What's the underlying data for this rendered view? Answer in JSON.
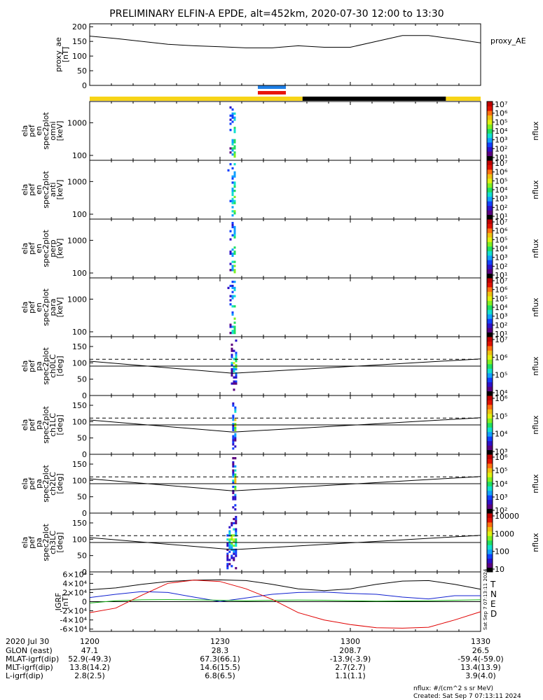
{
  "title": "PRELIMINARY ELFIN-A EPDE, alt=452km, 2020-07-30 12:00 to 13:30",
  "colors": {
    "bar_yellow": "#f7d417",
    "bar_black": "#000000",
    "marker_blue": "#1e7fe6",
    "marker_red": "#e8160c",
    "T": "#000000",
    "N": "#1020d0",
    "E": "#10b010",
    "D": "#e00000"
  },
  "colormap": [
    "#000000",
    "#5a0080",
    "#2e10c8",
    "#1040ff",
    "#10a0ff",
    "#10e0d0",
    "#20e060",
    "#80f020",
    "#e0f010",
    "#f0c010",
    "#ff7010",
    "#e01000",
    "#c00000"
  ],
  "time_axis": {
    "date_label": "2020 Jul 30",
    "ticks": [
      "1200",
      "1230",
      "1300",
      "1330"
    ],
    "rows": [
      {
        "label": "GLON (east)",
        "values": [
          "47.1",
          "28.3",
          "208.7",
          "26.5"
        ]
      },
      {
        "label": "MLAT-igrf(dip)",
        "values": [
          "52.9(-49.3)",
          "67.3(66.1)",
          "-13.9(-3.9)",
          "-59.4(-59.0)"
        ]
      },
      {
        "label": "MLT-igrf(dip)",
        "values": [
          "13.8(14.2)",
          "14.6(15.5)",
          "2.7(2.7)",
          "13.4(13.9)"
        ]
      },
      {
        "label": "L-igrf(dip)",
        "values": [
          "2.8(2.5)",
          "6.8(6.5)",
          "1.1(1.1)",
          "3.9(4.0)"
        ]
      }
    ]
  },
  "footer": {
    "units": "nflux: #/(cm^2 s sr MeV)",
    "created": "Created: Sat Sep  7 07:13:11 2024",
    "side_stamp": "Sat Sep  7 07:13:11 2024"
  },
  "chart_data": [
    {
      "type": "line",
      "name": "proxy_ae",
      "ylabel_lines": [
        "proxy_ae",
        "[nT]"
      ],
      "right_label": "proxy_AE",
      "ylim": [
        0,
        210
      ],
      "yticks": [
        "0",
        "50",
        "100",
        "150",
        "200"
      ],
      "x_minutes": [
        0,
        6,
        12,
        18,
        24,
        30,
        36,
        42,
        48,
        54,
        60,
        66,
        72,
        78,
        84,
        90
      ],
      "values": [
        168,
        160,
        150,
        140,
        135,
        132,
        128,
        128,
        135,
        130,
        130,
        150,
        170,
        170,
        158,
        145
      ]
    },
    {
      "type": "heatmap",
      "name": "spec2plot_omni",
      "ylabel_lines": [
        "ela",
        "pef",
        "en",
        "spec2plot",
        "omni",
        "[keV]"
      ],
      "yticks": [
        "100",
        "1000"
      ],
      "yscale": "log",
      "colorbar": {
        "label": "nflux",
        "ticks": [
          "10¹",
          "10²",
          "10³",
          "10⁴",
          "10⁵",
          "10⁶",
          "10⁷"
        ]
      },
      "active_window_minutes": [
        31.7,
        33.7
      ]
    },
    {
      "type": "heatmap",
      "name": "spec2plot_anti",
      "ylabel_lines": [
        "ela",
        "pef",
        "en",
        "spec2plot",
        "anti",
        "[keV]"
      ],
      "yticks": [
        "100",
        "1000"
      ],
      "yscale": "log",
      "colorbar": {
        "label": "nflux",
        "ticks": [
          "10¹",
          "10²",
          "10³",
          "10⁴",
          "10⁵",
          "10⁶",
          "10⁷"
        ]
      },
      "active_window_minutes": [
        31.7,
        33.7
      ]
    },
    {
      "type": "heatmap",
      "name": "spec2plot_perp",
      "ylabel_lines": [
        "ela",
        "pef",
        "en",
        "spec2plot",
        "perp",
        "[keV]"
      ],
      "yticks": [
        "100",
        "1000"
      ],
      "yscale": "log",
      "colorbar": {
        "label": "nflux",
        "ticks": [
          "10¹",
          "10²",
          "10³",
          "10⁴",
          "10⁵",
          "10⁶",
          "10⁷"
        ]
      },
      "active_window_minutes": [
        31.7,
        33.7
      ]
    },
    {
      "type": "heatmap",
      "name": "spec2plot_para",
      "ylabel_lines": [
        "ela",
        "pef",
        "en",
        "spec2plot",
        "para",
        "[keV]"
      ],
      "yticks": [
        "100",
        "1000"
      ],
      "yscale": "log",
      "colorbar": {
        "label": "nflux",
        "ticks": [
          "10¹",
          "10²",
          "10³",
          "10⁴",
          "10⁵",
          "10⁶",
          "10⁷"
        ]
      },
      "active_window_minutes": [
        31.7,
        33.7
      ]
    },
    {
      "type": "heatmap",
      "name": "spec2plot_ch0LC",
      "ylabel_lines": [
        "ela",
        "pef",
        "pa",
        "spec2plot",
        "ch0LC",
        "[deg]"
      ],
      "ylim": [
        0,
        180
      ],
      "yticks": [
        "0",
        "50",
        "100",
        "150"
      ],
      "dashed_level_deg": 111,
      "colorbar": {
        "label": "nflux",
        "ticks": [
          "10⁴",
          "10⁵",
          "10⁶",
          "10⁷"
        ]
      },
      "active_window_minutes": [
        32.5,
        34.0
      ]
    },
    {
      "type": "heatmap",
      "name": "spec2plot_ch1LC",
      "ylabel_lines": [
        "ela",
        "pef",
        "pa",
        "spec2plot",
        "ch1LC",
        "[deg]"
      ],
      "ylim": [
        0,
        180
      ],
      "yticks": [
        "0",
        "50",
        "100",
        "150"
      ],
      "dashed_level_deg": 111,
      "colorbar": {
        "label": "nflux",
        "ticks": [
          "10³",
          "10⁴",
          "10⁵",
          "10⁶"
        ]
      },
      "active_window_minutes": [
        32.8,
        33.8
      ]
    },
    {
      "type": "heatmap",
      "name": "spec2plot_ch2LC",
      "ylabel_lines": [
        "ela",
        "pef",
        "pa",
        "spec2plot",
        "ch2LC",
        "[deg]"
      ],
      "ylim": [
        0,
        180
      ],
      "yticks": [
        "0",
        "50",
        "100",
        "150"
      ],
      "dashed_level_deg": 111,
      "colorbar": {
        "label": "nflux",
        "ticks": [
          "10²",
          "10³",
          "10⁴",
          "10⁵",
          "10⁶"
        ]
      },
      "active_window_minutes": [
        32.8,
        33.6
      ]
    },
    {
      "type": "heatmap",
      "name": "spec2plot_ch3LC",
      "ylabel_lines": [
        "ela",
        "pef",
        "pa",
        "spec2plot",
        "ch3LC",
        "[deg]"
      ],
      "ylim": [
        0,
        180
      ],
      "yticks": [
        "0",
        "50",
        "100",
        "150"
      ],
      "dashed_level_deg": 111,
      "colorbar": {
        "label": "nflux",
        "ticks": [
          "10",
          "100",
          "1000",
          "10000"
        ]
      },
      "active_window_minutes": [
        31.5,
        34.0
      ]
    },
    {
      "type": "line",
      "name": "IGRF",
      "ylabel_lines": [
        "IGRF",
        "[nT]"
      ],
      "ylim": [
        -65000,
        65000
      ],
      "yticks": [
        "-6×10⁴",
        "-4×10⁴",
        "-2×10⁴",
        "0",
        "2×10⁴",
        "4×10⁴",
        "6×10⁴"
      ],
      "x_minutes": [
        0,
        6,
        12,
        18,
        24,
        30,
        36,
        42,
        48,
        54,
        60,
        66,
        72,
        78,
        84,
        90
      ],
      "series": [
        {
          "name": "T",
          "values": [
            26000,
            30000,
            38000,
            44000,
            47000,
            47500,
            46000,
            38000,
            28000,
            24000,
            28000,
            38000,
            45000,
            46000,
            38000,
            27000
          ]
        },
        {
          "name": "N",
          "values": [
            9000,
            16000,
            22000,
            20000,
            10000,
            500,
            8000,
            16000,
            20000,
            21000,
            18000,
            16000,
            10000,
            6000,
            13000,
            13000
          ]
        },
        {
          "name": "E",
          "values": [
            -3000,
            2000,
            4000,
            4500,
            4000,
            3000,
            2000,
            3000,
            3500,
            3000,
            2000,
            1000,
            1500,
            2000,
            3000,
            4000
          ]
        },
        {
          "name": "D",
          "values": [
            -24000,
            -14000,
            14000,
            40000,
            47000,
            44000,
            28000,
            5000,
            -24000,
            -40000,
            -50000,
            -57000,
            -58000,
            -56000,
            -40000,
            -22000
          ]
        }
      ]
    }
  ]
}
